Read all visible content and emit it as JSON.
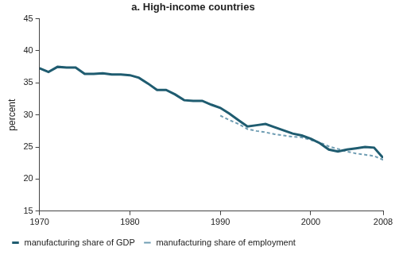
{
  "chart_data": {
    "type": "line",
    "title": "a. High-income countries",
    "y_label": "percent",
    "xlim": [
      1970,
      2008
    ],
    "xticks": [
      1970,
      1980,
      1990,
      2000,
      2008
    ],
    "ylim": [
      15,
      45
    ],
    "yticks": [
      15,
      20,
      25,
      30,
      35,
      40,
      45
    ],
    "grid": false,
    "legend": "bottom",
    "x": [
      1970,
      1971,
      1972,
      1973,
      1974,
      1975,
      1976,
      1977,
      1978,
      1979,
      1980,
      1981,
      1982,
      1983,
      1984,
      1985,
      1986,
      1987,
      1988,
      1989,
      1990,
      1991,
      1992,
      1993,
      1994,
      1995,
      1996,
      1997,
      1998,
      1999,
      2000,
      2001,
      2002,
      2003,
      2004,
      2005,
      2006,
      2007,
      2008
    ],
    "series": [
      {
        "name": "manufacturing share of GDP",
        "color": "#1f5c70",
        "line_style": "solid",
        "values": [
          37.3,
          36.7,
          37.5,
          37.4,
          37.4,
          36.4,
          36.4,
          36.5,
          36.3,
          36.3,
          36.2,
          35.8,
          34.9,
          33.9,
          33.9,
          33.2,
          32.3,
          32.2,
          32.2,
          31.6,
          31.1,
          30.2,
          29.2,
          28.2,
          28.4,
          28.6,
          28.1,
          27.6,
          27.1,
          26.8,
          26.3,
          25.6,
          24.6,
          24.3,
          24.6,
          24.8,
          25.0,
          24.9,
          23.3
        ]
      },
      {
        "name": "manufacturing share of employment",
        "color": "#6f9db3",
        "line_style": "dashed",
        "values": [
          null,
          null,
          null,
          null,
          null,
          null,
          null,
          null,
          null,
          null,
          null,
          null,
          null,
          null,
          null,
          null,
          null,
          null,
          null,
          null,
          29.9,
          29.2,
          28.6,
          27.8,
          27.5,
          27.3,
          27.0,
          26.8,
          26.6,
          26.5,
          26.1,
          25.7,
          25.1,
          24.7,
          24.3,
          24.0,
          23.8,
          23.6,
          23.0
        ]
      }
    ]
  }
}
